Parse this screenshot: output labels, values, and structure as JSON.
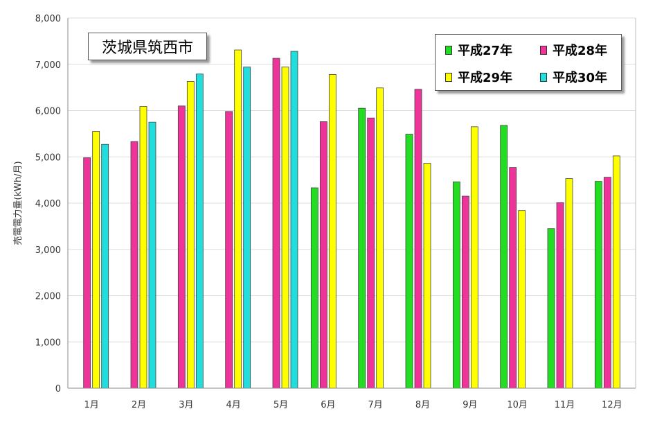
{
  "chart_data": {
    "type": "bar",
    "title": "茨城県筑西市",
    "ylabel": "売電電力量(kWh/月)",
    "xlabel": "",
    "ylim": [
      0,
      8000
    ],
    "yticks": [
      "0",
      "1,000",
      "2,000",
      "3,000",
      "4,000",
      "5,000",
      "6,000",
      "7,000",
      "8,000"
    ],
    "categories": [
      "1月",
      "2月",
      "3月",
      "4月",
      "5月",
      "6月",
      "7月",
      "8月",
      "9月",
      "10月",
      "11月",
      "12月"
    ],
    "grid": true,
    "legend_position": "top-right",
    "series": [
      {
        "name": "平成27年",
        "color": "#22dd22",
        "values": [
          null,
          null,
          null,
          null,
          null,
          4330,
          6050,
          5490,
          4460,
          5680,
          3450,
          4470
        ]
      },
      {
        "name": "平成28年",
        "color": "#ee3399",
        "values": [
          4980,
          5330,
          6100,
          5980,
          7130,
          5760,
          5840,
          6460,
          4150,
          4770,
          4010,
          4560
        ]
      },
      {
        "name": "平成29年",
        "color": "#ffff00",
        "values": [
          5550,
          6090,
          6630,
          7310,
          6940,
          6780,
          6490,
          4860,
          5650,
          3840,
          4530,
          5020
        ]
      },
      {
        "name": "平成30年",
        "color": "#22dddd",
        "values": [
          5270,
          5750,
          6790,
          6940,
          7280,
          null,
          null,
          null,
          null,
          null,
          null,
          null
        ]
      }
    ]
  }
}
